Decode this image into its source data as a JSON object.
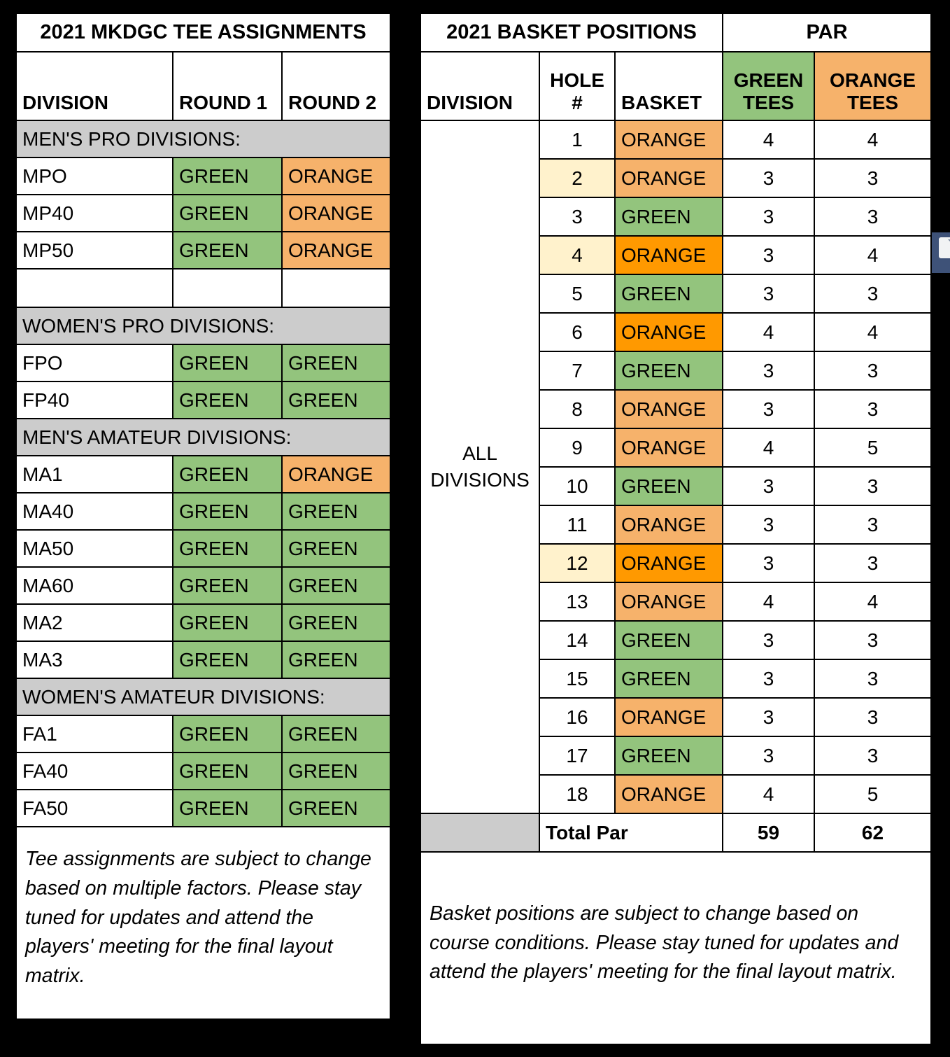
{
  "colors": {
    "green": "#93c47d",
    "orange_light": "#f6b26b",
    "orange_dark": "#ff9900",
    "cream": "#fff2cc",
    "section_gray": "#cccccc",
    "icon_blue": "#3e5278"
  },
  "left_table": {
    "title": "2021 MKDGC TEE ASSIGNMENTS",
    "headers": [
      "DIVISION",
      "ROUND 1",
      "ROUND 2"
    ],
    "rows": [
      {
        "type": "section",
        "label": "MEN'S PRO DIVISIONS:"
      },
      {
        "type": "data",
        "division": "MPO",
        "round1": "GREEN",
        "round2": "ORANGE"
      },
      {
        "type": "data",
        "division": "MP40",
        "round1": "GREEN",
        "round2": "ORANGE"
      },
      {
        "type": "data",
        "division": "MP50",
        "round1": "GREEN",
        "round2": "ORANGE"
      },
      {
        "type": "empty"
      },
      {
        "type": "section",
        "label": "WOMEN'S PRO DIVISIONS:"
      },
      {
        "type": "data",
        "division": "FPO",
        "round1": "GREEN",
        "round2": "GREEN"
      },
      {
        "type": "data",
        "division": "FP40",
        "round1": "GREEN",
        "round2": "GREEN"
      },
      {
        "type": "section",
        "label": "MEN'S AMATEUR DIVISIONS:"
      },
      {
        "type": "data",
        "division": "MA1",
        "round1": "GREEN",
        "round2": "ORANGE"
      },
      {
        "type": "data",
        "division": "MA40",
        "round1": "GREEN",
        "round2": "GREEN"
      },
      {
        "type": "data",
        "division": "MA50",
        "round1": "GREEN",
        "round2": "GREEN"
      },
      {
        "type": "data",
        "division": "MA60",
        "round1": "GREEN",
        "round2": "GREEN"
      },
      {
        "type": "data",
        "division": "MA2",
        "round1": "GREEN",
        "round2": "GREEN"
      },
      {
        "type": "data",
        "division": "MA3",
        "round1": "GREEN",
        "round2": "GREEN"
      },
      {
        "type": "section",
        "label": "WOMEN'S AMATEUR DIVISIONS:"
      },
      {
        "type": "data",
        "division": "FA1",
        "round1": "GREEN",
        "round2": "GREEN"
      },
      {
        "type": "data",
        "division": "FA40",
        "round1": "GREEN",
        "round2": "GREEN"
      },
      {
        "type": "data",
        "division": "FA50",
        "round1": "GREEN",
        "round2": "GREEN"
      }
    ],
    "note": "Tee assignments are subject to change based on multiple factors. Please stay tuned for updates and attend the players' meeting for the final layout matrix."
  },
  "right_table": {
    "title": "2021 BASKET POSITIONS",
    "par_title": "PAR",
    "headers": {
      "division": "DIVISION",
      "hole": "HOLE\n#",
      "basket": "BASKET",
      "green": "GREEN\nTEES",
      "orange": "ORANGE\nTEES"
    },
    "division_label": "ALL\nDIVISIONS",
    "rows": [
      {
        "hole": "1",
        "hole_bg": "white",
        "basket": "ORANGE",
        "basket_shade": "orange_light",
        "green_par": "4",
        "orange_par": "4"
      },
      {
        "hole": "2",
        "hole_bg": "cream",
        "basket": "ORANGE",
        "basket_shade": "orange_light",
        "green_par": "3",
        "orange_par": "3"
      },
      {
        "hole": "3",
        "hole_bg": "white",
        "basket": "GREEN",
        "basket_shade": "green",
        "green_par": "3",
        "orange_par": "3"
      },
      {
        "hole": "4",
        "hole_bg": "cream",
        "basket": "ORANGE",
        "basket_shade": "orange_dark",
        "green_par": "3",
        "orange_par": "4"
      },
      {
        "hole": "5",
        "hole_bg": "white",
        "basket": "GREEN",
        "basket_shade": "green",
        "green_par": "3",
        "orange_par": "3"
      },
      {
        "hole": "6",
        "hole_bg": "white",
        "basket": "ORANGE",
        "basket_shade": "orange_dark",
        "green_par": "4",
        "orange_par": "4"
      },
      {
        "hole": "7",
        "hole_bg": "white",
        "basket": "GREEN",
        "basket_shade": "green",
        "green_par": "3",
        "orange_par": "3"
      },
      {
        "hole": "8",
        "hole_bg": "white",
        "basket": "ORANGE",
        "basket_shade": "orange_light",
        "green_par": "3",
        "orange_par": "3"
      },
      {
        "hole": "9",
        "hole_bg": "white",
        "basket": "ORANGE",
        "basket_shade": "orange_light",
        "green_par": "4",
        "orange_par": "5"
      },
      {
        "hole": "10",
        "hole_bg": "white",
        "basket": "GREEN",
        "basket_shade": "green",
        "green_par": "3",
        "orange_par": "3"
      },
      {
        "hole": "11",
        "hole_bg": "white",
        "basket": "ORANGE",
        "basket_shade": "orange_light",
        "green_par": "3",
        "orange_par": "3"
      },
      {
        "hole": "12",
        "hole_bg": "cream",
        "basket": "ORANGE",
        "basket_shade": "orange_dark",
        "green_par": "3",
        "orange_par": "3"
      },
      {
        "hole": "13",
        "hole_bg": "white",
        "basket": "ORANGE",
        "basket_shade": "orange_light",
        "green_par": "4",
        "orange_par": "4"
      },
      {
        "hole": "14",
        "hole_bg": "white",
        "basket": "GREEN",
        "basket_shade": "green",
        "green_par": "3",
        "orange_par": "3"
      },
      {
        "hole": "15",
        "hole_bg": "white",
        "basket": "GREEN",
        "basket_shade": "green",
        "green_par": "3",
        "orange_par": "3"
      },
      {
        "hole": "16",
        "hole_bg": "white",
        "basket": "ORANGE",
        "basket_shade": "orange_light",
        "green_par": "3",
        "orange_par": "3"
      },
      {
        "hole": "17",
        "hole_bg": "white",
        "basket": "GREEN",
        "basket_shade": "green",
        "green_par": "3",
        "orange_par": "3"
      },
      {
        "hole": "18",
        "hole_bg": "white",
        "basket": "ORANGE",
        "basket_shade": "orange_light",
        "green_par": "4",
        "orange_par": "5"
      }
    ],
    "total": {
      "label": "Total Par",
      "green": "59",
      "orange": "62"
    },
    "note": "Basket positions are subject to change based on course conditions. Please stay tuned for updates and attend the players' meeting for the final layout matrix."
  }
}
